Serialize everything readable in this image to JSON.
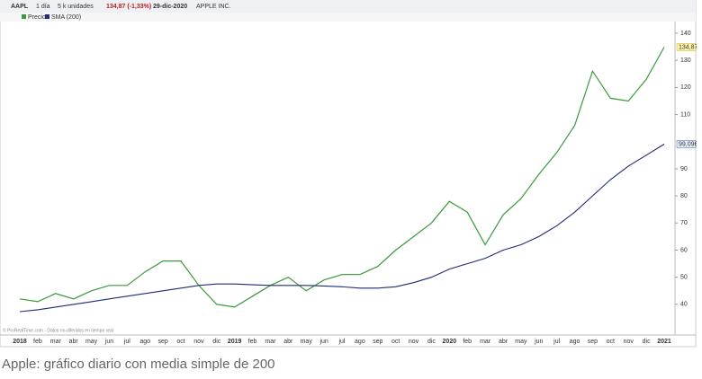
{
  "toolbar": {
    "symbol": "AAPL",
    "interval": "1 día",
    "units": "5 k unidades",
    "quote_price": "134,87 (-1,33%)",
    "quote_date": "29-dic-2020",
    "name": "APPLE INC."
  },
  "chart_data": {
    "type": "line",
    "categories": [
      "2018",
      "feb",
      "mar",
      "abr",
      "may",
      "jun",
      "jul",
      "ago",
      "sep",
      "oct",
      "nov",
      "dic",
      "2019",
      "feb",
      "mar",
      "abr",
      "may",
      "jun",
      "jul",
      "ago",
      "sep",
      "oct",
      "nov",
      "dic",
      "2020",
      "feb",
      "mar",
      "abr",
      "may",
      "jun",
      "jul",
      "ago",
      "sep",
      "oct",
      "nov",
      "dic",
      "2021"
    ],
    "series": [
      {
        "name": "Precio",
        "color": "#3a9a3a",
        "values": [
          42,
          41,
          44,
          42,
          45,
          47,
          47,
          52,
          56,
          56,
          47,
          40,
          39,
          43,
          47,
          50,
          45,
          49,
          51,
          51,
          54,
          60,
          65,
          70,
          78,
          74,
          62,
          73,
          79,
          88,
          96,
          106,
          126,
          116,
          115,
          123,
          134.87
        ],
        "value_labels": [
          null,
          null,
          null,
          null,
          null,
          null,
          null,
          null,
          null,
          null,
          null,
          null,
          null,
          null,
          null,
          null,
          null,
          null,
          null,
          null,
          null,
          null,
          null,
          null,
          null,
          null,
          null,
          null,
          null,
          null,
          null,
          null,
          null,
          null,
          null,
          null,
          "134,87"
        ]
      },
      {
        "name": "SMA (200)",
        "color": "#1f2a7a",
        "values": [
          37.3,
          38,
          39,
          40,
          41,
          42,
          43,
          44,
          45,
          46,
          47,
          47.5,
          47.5,
          47.2,
          47,
          47,
          47,
          46.8,
          46.5,
          46,
          46,
          46.5,
          48,
          50,
          53,
          55,
          57,
          60,
          62,
          65,
          69,
          74,
          80,
          86,
          91,
          95,
          99.096
        ],
        "value_labels": [
          null,
          null,
          null,
          null,
          null,
          null,
          null,
          null,
          null,
          null,
          null,
          null,
          null,
          null,
          null,
          null,
          null,
          null,
          null,
          null,
          null,
          null,
          null,
          null,
          null,
          null,
          null,
          null,
          null,
          null,
          null,
          null,
          null,
          null,
          null,
          null,
          "99,096"
        ]
      }
    ],
    "ylim": [
      28.7,
      144.3
    ],
    "yticks": [
      40,
      50,
      60,
      70,
      80,
      90,
      110,
      120,
      130,
      140
    ],
    "grid": false,
    "watermark": "© ProRealTime.com - Datos no-diferidos en tiempo real"
  },
  "caption": "Apple: gráfico diario con media simple de 200"
}
